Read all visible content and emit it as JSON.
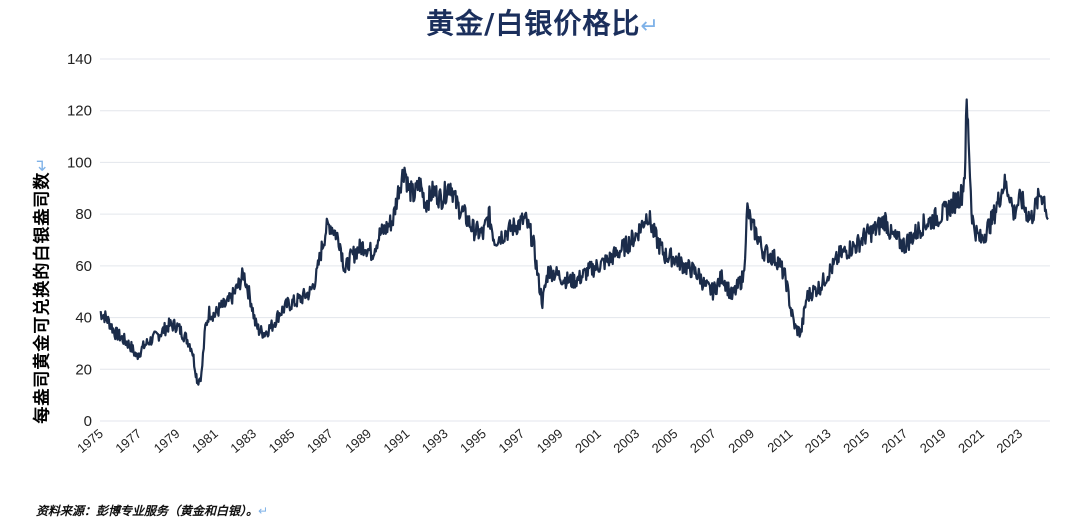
{
  "chart_data": {
    "type": "line",
    "title": "黄金/白银价格比",
    "ylabel": "每盎司黄金可兑换的白银盎司数",
    "xlabel": "",
    "ylim": [
      0,
      140
    ],
    "yticks": [
      0,
      20,
      40,
      60,
      80,
      100,
      120,
      140
    ],
    "xlim": [
      1975,
      2024.6
    ],
    "xticks": [
      "1975",
      "1977",
      "1979",
      "1981",
      "1983",
      "1985",
      "1987",
      "1989",
      "1991",
      "1993",
      "1995",
      "1997",
      "1999",
      "2001",
      "2003",
      "2005",
      "2007",
      "2009",
      "2011",
      "2013",
      "2015",
      "2017",
      "2019",
      "2021",
      "2023"
    ],
    "grid": true,
    "line_color": "#1b2c4a",
    "series": [
      {
        "x": [
          1975.0,
          1975.2,
          1975.5,
          1975.8,
          1976.0,
          1976.3,
          1976.6,
          1976.9,
          1977.0,
          1977.3,
          1977.6,
          1978.0,
          1978.3,
          1978.6,
          1979.0,
          1979.3,
          1979.6,
          1979.8,
          1980.0,
          1980.1,
          1980.3,
          1980.5,
          1980.7,
          1981.0,
          1981.3,
          1981.6,
          1981.9,
          1982.2,
          1982.5,
          1982.9,
          1983.1,
          1983.3,
          1983.6,
          1984.0,
          1984.4,
          1984.8,
          1985.2,
          1985.6,
          1986.0,
          1986.3,
          1986.5,
          1986.8,
          1987.0,
          1987.2,
          1987.5,
          1987.8,
          1988.0,
          1988.4,
          1988.8,
          1989.2,
          1989.6,
          1990.0,
          1990.3,
          1990.6,
          1990.9,
          1991.1,
          1991.4,
          1991.7,
          1992.0,
          1992.4,
          1992.8,
          1993.0,
          1993.3,
          1993.6,
          1994.0,
          1994.5,
          1995.0,
          1995.3,
          1995.6,
          1996.0,
          1996.4,
          1996.8,
          1997.2,
          1997.6,
          1997.9,
          1998.1,
          1998.4,
          1998.8,
          1999.2,
          1999.6,
          2000.0,
          2000.5,
          2001.0,
          2001.5,
          2002.0,
          2002.5,
          2003.0,
          2003.3,
          2003.6,
          2003.9,
          2004.2,
          2004.5,
          2005.0,
          2005.5,
          2006.0,
          2006.3,
          2006.6,
          2007.0,
          2007.5,
          2008.0,
          2008.3,
          2008.6,
          2008.8,
          2009.0,
          2009.3,
          2009.6,
          2010.0,
          2010.4,
          2010.8,
          2011.1,
          2011.3,
          2011.6,
          2011.9,
          2012.2,
          2012.6,
          2013.0,
          2013.3,
          2013.6,
          2014.0,
          2014.5,
          2015.0,
          2015.5,
          2016.0,
          2016.3,
          2016.6,
          2017.0,
          2017.5,
          2018.0,
          2018.5,
          2019.0,
          2019.4,
          2019.8,
          2020.0,
          2020.15,
          2020.25,
          2020.35,
          2020.5,
          2020.6,
          2020.8,
          2021.0,
          2021.3,
          2021.6,
          2021.9,
          2022.2,
          2022.5,
          2022.7,
          2022.9,
          2023.1,
          2023.3,
          2023.6,
          2023.9,
          2024.1,
          2024.3,
          2024.5
        ],
        "values": [
          42,
          41,
          38,
          34,
          33,
          31,
          29,
          25,
          26,
          29,
          31,
          33,
          35,
          37,
          37,
          34,
          31,
          28,
          19,
          15,
          18,
          36,
          42,
          41,
          44,
          45,
          48,
          52,
          57,
          46,
          38,
          35,
          34,
          37,
          42,
          45,
          46,
          48,
          50,
          56,
          64,
          74,
          76,
          74,
          70,
          58,
          62,
          66,
          68,
          65,
          72,
          75,
          78,
          90,
          98,
          90,
          87,
          92,
          84,
          89,
          86,
          88,
          92,
          84,
          80,
          74,
          72,
          80,
          70,
          72,
          74,
          76,
          78,
          70,
          54,
          46,
          58,
          57,
          55,
          54,
          55,
          58,
          60,
          62,
          65,
          68,
          72,
          76,
          80,
          73,
          68,
          64,
          63,
          60,
          58,
          56,
          52,
          50,
          56,
          48,
          52,
          56,
          82,
          76,
          72,
          66,
          64,
          62,
          55,
          42,
          36,
          34,
          48,
          50,
          52,
          57,
          60,
          64,
          66,
          68,
          72,
          74,
          78,
          72,
          70,
          68,
          72,
          76,
          78,
          80,
          83,
          86,
          88,
          96,
          122,
          110,
          82,
          76,
          72,
          70,
          74,
          78,
          85,
          92,
          88,
          80,
          84,
          86,
          82,
          78,
          84,
          88,
          86,
          78
        ]
      }
    ]
  },
  "source_note": "资料来源：彭博专业服务（黄金和白银）。",
  "para_mark": "↵"
}
